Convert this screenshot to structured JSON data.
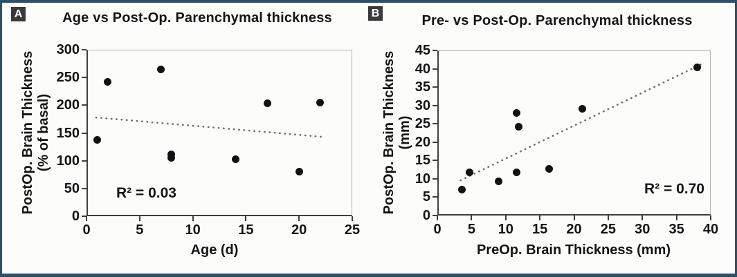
{
  "figure": {
    "frame_color": "#2d5066",
    "background_color": "#fcfcfa",
    "panel_marker_bg": "#3a3a3a",
    "point_color": "#111111",
    "trend_color": "#6e6e6e"
  },
  "chart_data": [
    {
      "type": "scatter",
      "panel_label": "A",
      "title": "Age vs Post-Op. Parenchymal thickness",
      "xlabel": "Age (d)",
      "ylabel_lines": [
        "PostOp. Brain Thickness",
        "(% of basal)"
      ],
      "xlim": [
        0,
        25
      ],
      "ylim": [
        0,
        300
      ],
      "xticks": [
        0,
        5,
        10,
        15,
        20,
        25
      ],
      "yticks": [
        0,
        50,
        100,
        150,
        200,
        250,
        300
      ],
      "points": [
        [
          1,
          137
        ],
        [
          2,
          242
        ],
        [
          7,
          265
        ],
        [
          8,
          112
        ],
        [
          8,
          105
        ],
        [
          14,
          103
        ],
        [
          17,
          203
        ],
        [
          20,
          80
        ],
        [
          22,
          205
        ]
      ],
      "trendline": {
        "x1": 0.9,
        "y1": 178,
        "x2": 22.2,
        "y2": 143,
        "style": "dotted"
      },
      "annotation": "R² = 0.03",
      "grid": false,
      "legend_position": "none"
    },
    {
      "type": "scatter",
      "panel_label": "B",
      "title": "Pre- vs Post-Op. Parenchymal thickness",
      "xlabel": "PreOp. Brain Thickness (mm)",
      "ylabel_lines": [
        "PostOp. Brain Thickness",
        "(mm)"
      ],
      "xlim": [
        0,
        40
      ],
      "ylim": [
        0,
        45
      ],
      "xticks": [
        0,
        5,
        10,
        15,
        20,
        25,
        30,
        35,
        40
      ],
      "yticks": [
        0,
        5,
        10,
        15,
        20,
        25,
        30,
        35,
        40,
        45
      ],
      "points": [
        [
          3.6,
          7
        ],
        [
          4.7,
          11.7
        ],
        [
          9,
          9.4
        ],
        [
          11.6,
          28
        ],
        [
          11.9,
          24.2
        ],
        [
          11.6,
          11.7
        ],
        [
          16.4,
          12.8
        ],
        [
          21.2,
          29
        ],
        [
          38,
          40.4
        ]
      ],
      "trendline": {
        "x1": 3.4,
        "y1": 9.6,
        "x2": 38.6,
        "y2": 41.2,
        "style": "dotted"
      },
      "annotation": "R² = 0.70",
      "grid": false,
      "legend_position": "none"
    }
  ]
}
